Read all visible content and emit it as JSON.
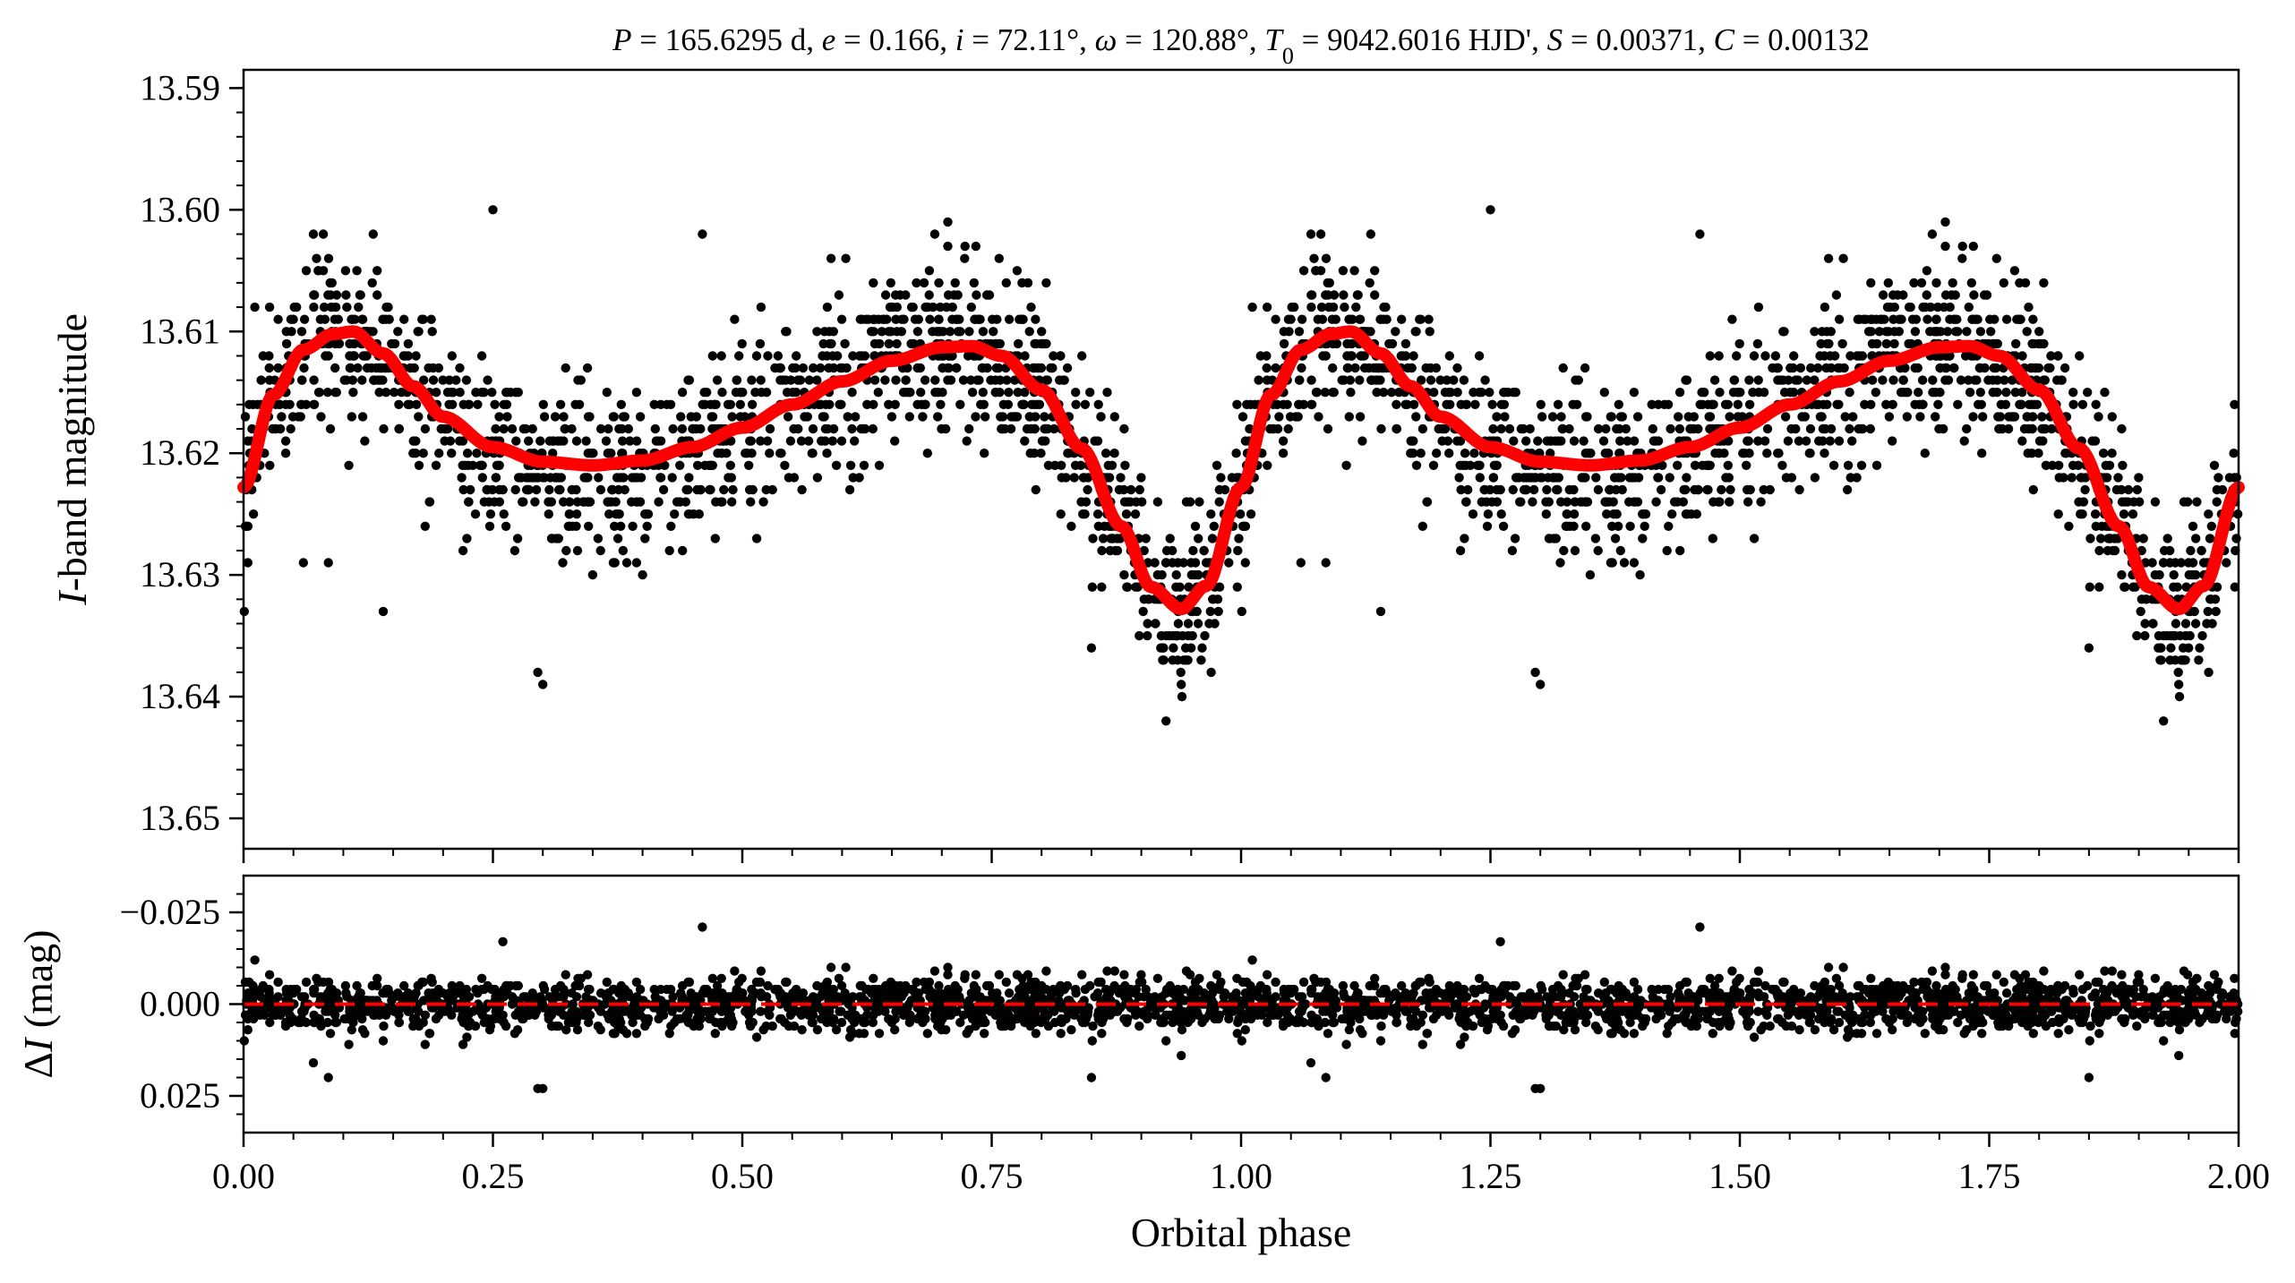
{
  "chart_data": [
    {
      "type": "scatter",
      "panel": "top",
      "title": "P = 165.6295 d, e = 0.166, i = 72.11°, ω = 120.88°, T0 = 9042.6016 HJD', S = 0.00371, C = 0.00132",
      "title_parts": [
        {
          "text": "P",
          "style": "italic"
        },
        {
          "text": " = 165.6295 d, ",
          "style": "normal"
        },
        {
          "text": "e",
          "style": "italic"
        },
        {
          "text": " = 0.166, ",
          "style": "normal"
        },
        {
          "text": "i",
          "style": "italic"
        },
        {
          "text": " = 72.11°, ",
          "style": "normal"
        },
        {
          "text": "ω",
          "style": "italic"
        },
        {
          "text": " = 120.88°, ",
          "style": "normal"
        },
        {
          "text": "T",
          "style": "italic"
        },
        {
          "text": "0",
          "style": "sub"
        },
        {
          "text": " = 9042.6016 HJD', ",
          "style": "normal"
        },
        {
          "text": "S",
          "style": "italic"
        },
        {
          "text": " = 0.00371, ",
          "style": "normal"
        },
        {
          "text": "C",
          "style": "italic"
        },
        {
          "text": " = 0.00132",
          "style": "normal"
        }
      ],
      "xlabel": "",
      "ylabel_parts": [
        {
          "text": "I",
          "style": "italic"
        },
        {
          "text": "-band magnitude",
          "style": "normal"
        }
      ],
      "ylabel": "I-band magnitude",
      "xlim": [
        0.0,
        2.0
      ],
      "ylim": [
        13.6525,
        13.5885
      ],
      "y_inverted": true,
      "yticks": [
        13.59,
        13.6,
        13.61,
        13.62,
        13.63,
        13.64,
        13.65
      ],
      "ytick_labels": [
        "13.59",
        "13.60",
        "13.61",
        "13.62",
        "13.63",
        "13.64",
        "13.65"
      ],
      "xticks": [
        0.0,
        0.25,
        0.5,
        0.75,
        1.0,
        1.25,
        1.5,
        1.75,
        2.0
      ],
      "grid": false,
      "series": [
        {
          "kind": "points",
          "color": "#000000",
          "phase_values_first_cycle": [
            [
              0.0,
              13.624
            ],
            [
              0.01,
              13.626
            ],
            [
              0.02,
              13.62
            ],
            [
              0.03,
              13.616
            ],
            [
              0.04,
              13.613
            ],
            [
              0.05,
              13.611
            ],
            [
              0.06,
              13.609
            ],
            [
              0.07,
              13.607
            ],
            [
              0.08,
              13.606
            ],
            [
              0.09,
              13.605
            ],
            [
              0.1,
              13.606
            ],
            [
              0.11,
              13.607
            ],
            [
              0.12,
              13.609
            ],
            [
              0.13,
              13.611
            ],
            [
              0.14,
              13.612
            ],
            [
              0.15,
              13.613
            ],
            [
              0.16,
              13.614
            ],
            [
              0.17,
              13.615
            ],
            [
              0.18,
              13.616
            ],
            [
              0.19,
              13.617
            ],
            [
              0.2,
              13.618
            ],
            [
              0.22,
              13.619
            ],
            [
              0.24,
              13.62
            ],
            [
              0.26,
              13.62
            ],
            [
              0.28,
              13.621
            ],
            [
              0.3,
              13.621
            ],
            [
              0.32,
              13.621
            ],
            [
              0.34,
              13.622
            ],
            [
              0.36,
              13.622
            ],
            [
              0.38,
              13.621
            ],
            [
              0.4,
              13.621
            ],
            [
              0.42,
              13.621
            ],
            [
              0.44,
              13.62
            ],
            [
              0.46,
              13.619
            ],
            [
              0.48,
              13.619
            ],
            [
              0.5,
              13.618
            ],
            [
              0.52,
              13.617
            ],
            [
              0.54,
              13.616
            ],
            [
              0.56,
              13.615
            ],
            [
              0.58,
              13.614
            ],
            [
              0.6,
              13.613
            ],
            [
              0.62,
              13.612
            ],
            [
              0.64,
              13.611
            ],
            [
              0.66,
              13.611
            ],
            [
              0.68,
              13.61
            ],
            [
              0.7,
              13.61
            ],
            [
              0.72,
              13.609
            ],
            [
              0.74,
              13.61
            ],
            [
              0.76,
              13.611
            ],
            [
              0.78,
              13.612
            ],
            [
              0.8,
              13.613
            ],
            [
              0.82,
              13.615
            ],
            [
              0.84,
              13.617
            ],
            [
              0.86,
              13.62
            ],
            [
              0.88,
              13.623
            ],
            [
              0.9,
              13.626
            ],
            [
              0.92,
              13.629
            ],
            [
              0.94,
              13.631
            ],
            [
              0.96,
              13.63
            ],
            [
              0.98,
              13.628
            ]
          ],
          "outliers": [
            [
              0.07,
              13.602
            ],
            [
              0.08,
              13.602
            ],
            [
              0.13,
              13.602
            ],
            [
              0.25,
              13.6
            ],
            [
              0.46,
              13.602
            ],
            [
              0.06,
              13.629
            ],
            [
              0.085,
              13.629
            ],
            [
              0.14,
              13.633
            ],
            [
              0.22,
              13.628
            ],
            [
              0.295,
              13.638
            ],
            [
              0.3,
              13.639
            ],
            [
              0.32,
              13.629
            ],
            [
              0.35,
              13.63
            ],
            [
              0.4,
              13.63
            ],
            [
              0.44,
              13.628
            ],
            [
              0.85,
              13.636
            ],
            [
              0.92,
              13.635
            ],
            [
              0.94,
              13.639
            ],
            [
              0.96,
              13.637
            ],
            [
              0.97,
              13.638
            ]
          ]
        },
        {
          "kind": "model",
          "color": "#ff0000",
          "x": [
            0.0,
            0.03,
            0.06,
            0.09,
            0.11,
            0.14,
            0.17,
            0.2,
            0.25,
            0.3,
            0.35,
            0.4,
            0.45,
            0.5,
            0.55,
            0.6,
            0.65,
            0.7,
            0.73,
            0.76,
            0.8,
            0.84,
            0.88,
            0.91,
            0.94,
            0.965,
            1.0
          ],
          "y": [
            13.6228,
            13.6152,
            13.6115,
            13.6102,
            13.61,
            13.6118,
            13.6145,
            13.617,
            13.6195,
            13.6207,
            13.621,
            13.6206,
            13.6195,
            13.6179,
            13.616,
            13.6141,
            13.6124,
            13.6113,
            13.6112,
            13.612,
            13.6148,
            13.6196,
            13.626,
            13.631,
            13.6328,
            13.6309,
            13.6228
          ]
        }
      ]
    },
    {
      "type": "scatter",
      "panel": "bottom",
      "xlabel": "Orbital phase",
      "ylabel_parts": [
        {
          "text": "Δ",
          "style": "normal"
        },
        {
          "text": "I",
          "style": "italic"
        },
        {
          "text": " (mag)",
          "style": "normal"
        }
      ],
      "ylabel": "ΔI (mag)",
      "xlim": [
        0.0,
        2.0
      ],
      "ylim": [
        0.035,
        -0.035
      ],
      "y_inverted": true,
      "yticks": [
        -0.025,
        0.0,
        0.025
      ],
      "ytick_labels": [
        "−0.025",
        "0.000",
        "0.025"
      ],
      "xticks": [
        0.0,
        0.25,
        0.5,
        0.75,
        1.0,
        1.25,
        1.5,
        1.75,
        2.0
      ],
      "xtick_labels": [
        "0.00",
        "0.25",
        "0.50",
        "0.75",
        "1.00",
        "1.25",
        "1.50",
        "1.75",
        "2.00"
      ],
      "grid": false,
      "residual_scatter_std": 0.0035,
      "series": [
        {
          "kind": "points",
          "color": "#000000",
          "outliers": [
            [
              0.26,
              -0.017
            ],
            [
              0.46,
              -0.021
            ],
            [
              0.07,
              0.016
            ],
            [
              0.085,
              0.02
            ],
            [
              0.295,
              0.023
            ],
            [
              0.3,
              0.023
            ],
            [
              0.85,
              0.02
            ],
            [
              0.94,
              0.014
            ],
            [
              0.22,
              0.011
            ],
            [
              0.14,
              0.01
            ]
          ]
        },
        {
          "kind": "zero-line",
          "color": "#ff0000",
          "style": "dashed",
          "y": 0.0
        }
      ]
    }
  ]
}
